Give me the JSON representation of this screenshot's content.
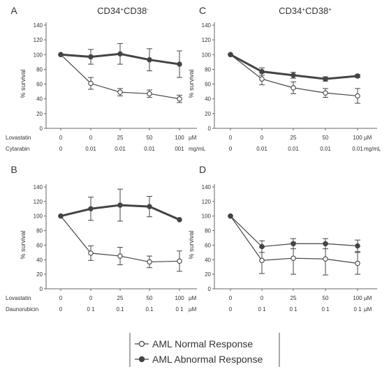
{
  "figure": {
    "left_title": "CD34+CD38-",
    "right_title": "CD34+CD38+",
    "left_title_parts": {
      "base": "CD34",
      "sup1": "+",
      "mid": "CD38",
      "sup2": "-"
    },
    "right_title_parts": {
      "base": "CD34",
      "sup1": "+",
      "mid": "CD38",
      "sup2": "+"
    }
  },
  "legend": {
    "items": [
      {
        "label": "AML Normal Response",
        "marker": "open-circle"
      },
      {
        "label": "AML Abnormal Response",
        "marker": "filled-circle"
      }
    ]
  },
  "colors": {
    "normal_fill": "#ffffff",
    "abnormal_fill": "#444444",
    "line": "#444444"
  },
  "chart_data": [
    {
      "panel": "A",
      "type": "line",
      "ylabel": "% survival",
      "ylim": [
        0,
        140
      ],
      "yticks": [
        "0",
        "20",
        "40",
        "60",
        "80",
        "100",
        "120",
        "140"
      ],
      "rows": [
        {
          "label": "Lovastatin",
          "values": [
            "0",
            "0",
            "25",
            "50",
            "100"
          ],
          "unit": "µM"
        },
        {
          "label": "Cytarabin",
          "values": [
            "0",
            "0.01",
            "0.01",
            "0.01",
            "001"
          ],
          "unit": "mg/mL"
        }
      ],
      "series": [
        {
          "name": "AML Normal Response",
          "marker": "open",
          "values": [
            100,
            61,
            49,
            47,
            40
          ],
          "err": [
            0,
            8,
            5,
            5,
            5
          ]
        },
        {
          "name": "AML Abnormal Response",
          "marker": "filled",
          "values": [
            100,
            97,
            101,
            93,
            87
          ],
          "err": [
            0,
            10,
            14,
            15,
            18
          ]
        }
      ]
    },
    {
      "panel": "B",
      "type": "line",
      "ylabel": "% survival",
      "ylim": [
        0,
        140
      ],
      "yticks": [
        "0",
        "20",
        "40",
        "60",
        "80",
        "100",
        "120",
        "140"
      ],
      "rows": [
        {
          "label": "Lovastatin",
          "values": [
            "0",
            "0",
            "25",
            "50",
            "100"
          ],
          "unit": "µM"
        },
        {
          "label": "Daunorubicin",
          "values": [
            "0",
            "0 1",
            "0.1",
            "0.1",
            "0 1"
          ],
          "unit": "µM"
        }
      ],
      "series": [
        {
          "name": "AML Normal Response",
          "marker": "open",
          "values": [
            100,
            49,
            45,
            37,
            38
          ],
          "err": [
            0,
            10,
            12,
            8,
            14
          ]
        },
        {
          "name": "AML Abnormal Response",
          "marker": "filled",
          "values": [
            100,
            110,
            115,
            113,
            95
          ],
          "err": [
            0,
            16,
            22,
            14,
            0
          ]
        }
      ]
    },
    {
      "panel": "C",
      "type": "line",
      "ylabel": "% survival",
      "ylim": [
        0,
        140
      ],
      "yticks": [
        "0",
        "20",
        "40",
        "60",
        "80",
        "100",
        "120",
        "140"
      ],
      "rows": [
        {
          "label": "",
          "values": [
            "0",
            "0",
            "25",
            "50",
            "100"
          ],
          "unit": "µM"
        },
        {
          "label": "",
          "values": [
            "0",
            "0.01",
            "0.01",
            "0.01",
            "0.01"
          ],
          "unit": "mg/mL"
        }
      ],
      "series": [
        {
          "name": "AML Normal Response",
          "marker": "open",
          "values": [
            100,
            67,
            55,
            48,
            44
          ],
          "err": [
            0,
            8,
            8,
            6,
            10
          ]
        },
        {
          "name": "AML Abnormal Response",
          "marker": "filled",
          "values": [
            100,
            77,
            72,
            67,
            71
          ],
          "err": [
            0,
            5,
            4,
            3,
            2
          ]
        }
      ]
    },
    {
      "panel": "D",
      "type": "line",
      "ylabel": "% survival",
      "ylim": [
        0,
        140
      ],
      "yticks": [
        "0",
        "20",
        "40",
        "60",
        "80",
        "100",
        "120",
        "140"
      ],
      "rows": [
        {
          "label": "",
          "values": [
            "0",
            "0",
            "25",
            "50",
            "100"
          ],
          "unit": "µM"
        },
        {
          "label": "",
          "values": [
            "0",
            "0 1",
            "0 1",
            "0 1",
            "0 1"
          ],
          "unit": "µM"
        }
      ],
      "series": [
        {
          "name": "AML Normal Response",
          "marker": "open",
          "values": [
            100,
            39,
            42,
            41,
            35
          ],
          "err": [
            0,
            18,
            22,
            22,
            15
          ]
        },
        {
          "name": "AML Abnormal Response",
          "marker": "filled",
          "values": [
            100,
            58,
            62,
            62,
            59
          ],
          "err": [
            0,
            8,
            7,
            7,
            8
          ]
        }
      ]
    }
  ]
}
